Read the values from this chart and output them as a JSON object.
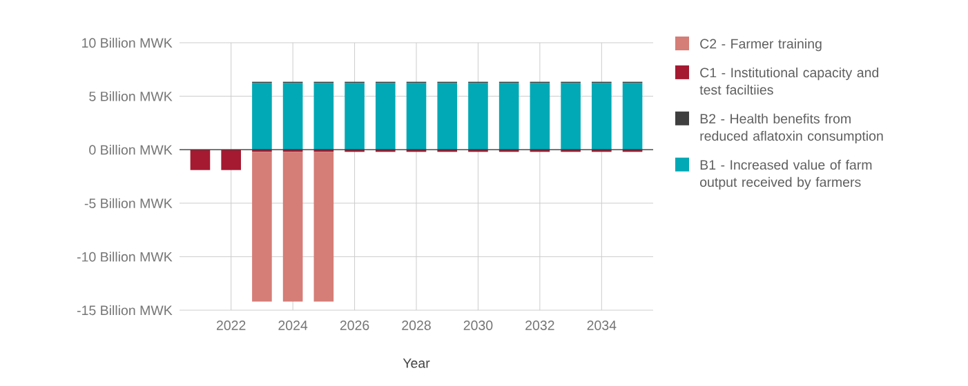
{
  "chart_data": {
    "type": "bar",
    "stacked": true,
    "xlabel": "Year",
    "x": [
      2021,
      2022,
      2023,
      2024,
      2025,
      2026,
      2027,
      2028,
      2029,
      2030,
      2031,
      2032,
      2033,
      2034,
      2035
    ],
    "series": [
      {
        "name": "B1 - Increased value of farm output received by farmers",
        "color": "#00a9b5",
        "values": [
          null,
          null,
          6.25,
          6.25,
          6.25,
          6.25,
          6.25,
          6.25,
          6.25,
          6.25,
          6.25,
          6.25,
          6.25,
          6.25,
          6.25
        ]
      },
      {
        "name": "B2 - Health benefits from reduced aflatoxin consumption",
        "color": "#3f3f3f",
        "values": [
          null,
          null,
          0.1,
          0.1,
          0.1,
          0.1,
          0.1,
          0.1,
          0.1,
          0.1,
          0.1,
          0.1,
          0.1,
          0.1,
          0.1
        ]
      },
      {
        "name": "C1 - Institutional capacity and test faciltiies",
        "color": "#a51a31",
        "values": [
          -1.9,
          -1.9,
          -0.2,
          -0.2,
          -0.2,
          -0.2,
          -0.2,
          -0.2,
          -0.2,
          -0.2,
          -0.2,
          -0.2,
          -0.2,
          -0.2,
          -0.2
        ]
      },
      {
        "name": "C2 - Farmer training",
        "color": "#d57d77",
        "values": [
          null,
          null,
          -14,
          -14,
          -14,
          null,
          null,
          null,
          null,
          null,
          null,
          null,
          null,
          null,
          null
        ]
      }
    ],
    "xlim": [
      2020.33,
      2035.67
    ],
    "xticks": [
      2022,
      2024,
      2026,
      2028,
      2030,
      2032,
      2034
    ],
    "ylim": [
      -15,
      10
    ],
    "yticks": [
      {
        "value": -15,
        "label": "-15 Billion MWK"
      },
      {
        "value": -10,
        "label": "-10 Billion MWK"
      },
      {
        "value": -5,
        "label": "-5 Billion MWK"
      },
      {
        "value": 0,
        "label": "0 Billion MWK"
      },
      {
        "value": 5,
        "label": "5 Billion MWK"
      },
      {
        "value": 10,
        "label": "10 Billion MWK"
      }
    ],
    "grid": true,
    "legend": "right"
  }
}
